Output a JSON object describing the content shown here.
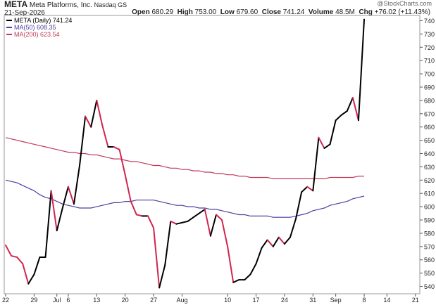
{
  "header": {
    "symbol": "META",
    "company": "Meta Platforms, Inc.",
    "exchange": "Nasdaq GS",
    "date": "21-Sep-2026",
    "ohlc": {
      "open_label": "Open",
      "open": "680.29",
      "high_label": "High",
      "high": "753.00",
      "low_label": "Low",
      "low": "679.60",
      "close_label": "Close",
      "close": "741.24",
      "volume_label": "Volume",
      "volume": "48.5M",
      "chg_label": "Chg",
      "chg": "+76.02 (+11.43%)"
    },
    "watermark": "@StockCharts.com"
  },
  "legend": [
    {
      "label": "META (Daily) 741.24",
      "color": "#000000"
    },
    {
      "label": "MA(50) 608.35",
      "color": "#4b3fa0"
    },
    {
      "label": "MA(200) 623.54",
      "color": "#c2385a"
    }
  ],
  "chart_data": {
    "type": "line",
    "ylim": [
      535,
      745
    ],
    "y_ticks": [
      540,
      550,
      560,
      570,
      580,
      590,
      600,
      610,
      620,
      630,
      640,
      650,
      660,
      670,
      680,
      690,
      700,
      710,
      720,
      730,
      740
    ],
    "x_ticks": [
      {
        "label": "22",
        "i": 0
      },
      {
        "label": "29",
        "i": 5
      },
      {
        "label": "Jul",
        "i": 9
      },
      {
        "label": "6",
        "i": 11
      },
      {
        "label": "13",
        "i": 16
      },
      {
        "label": "20",
        "i": 21
      },
      {
        "label": "27",
        "i": 26
      },
      {
        "label": "Aug",
        "i": 31
      },
      {
        "label": "10",
        "i": 39
      },
      {
        "label": "17",
        "i": 44
      },
      {
        "label": "24",
        "i": 49
      },
      {
        "label": "31",
        "i": 54
      },
      {
        "label": "Sep",
        "i": 58
      },
      {
        "label": "8",
        "i": 63
      },
      {
        "label": "14",
        "i": 67
      },
      {
        "label": "21",
        "i": 72
      }
    ],
    "up_color": "#000000",
    "down_color": "#d0254e",
    "series": [
      {
        "name": "META (Daily)",
        "values": [
          571,
          563,
          562,
          557,
          542,
          549,
          562,
          562,
          612,
          582,
          599,
          615,
          602,
          631,
          668,
          660,
          680,
          661,
          645,
          645,
          643,
          624,
          604,
          594,
          593,
          593,
          584,
          539,
          556,
          589,
          587,
          588,
          589,
          592,
          595,
          598,
          578,
          594,
          590,
          570,
          543,
          545,
          545,
          549,
          557,
          569,
          575,
          570,
          577,
          572,
          577,
          591,
          611,
          615,
          612,
          652,
          644,
          647,
          665,
          669,
          672,
          682,
          665,
          741
        ]
      },
      {
        "name": "MA(50)",
        "values": [
          620,
          619,
          618,
          616,
          614,
          612,
          609,
          607,
          606,
          604,
          602,
          601,
          600,
          599,
          599,
          599,
          600,
          601,
          602,
          603,
          603,
          604,
          604,
          605,
          605,
          605,
          605,
          604,
          603,
          602,
          601,
          601,
          600,
          600,
          599,
          599,
          598,
          598,
          597,
          596,
          595,
          594,
          594,
          593,
          593,
          593,
          593,
          592,
          592,
          592,
          592,
          593,
          594,
          595,
          597,
          598,
          599,
          601,
          602,
          603,
          604,
          606,
          607,
          608
        ]
      },
      {
        "name": "MA(200)",
        "values": [
          652,
          651,
          650,
          649,
          648,
          647,
          646,
          645,
          644,
          643,
          642,
          641,
          641,
          640,
          640,
          639,
          639,
          638,
          637,
          636,
          636,
          635,
          634,
          634,
          633,
          632,
          631,
          631,
          630,
          629,
          629,
          628,
          628,
          627,
          627,
          626,
          626,
          625,
          625,
          624,
          624,
          623,
          623,
          622,
          622,
          622,
          622,
          621,
          621,
          621,
          621,
          621,
          621,
          621,
          621,
          621,
          621,
          622,
          622,
          622,
          622,
          622,
          623,
          623
        ]
      }
    ]
  }
}
